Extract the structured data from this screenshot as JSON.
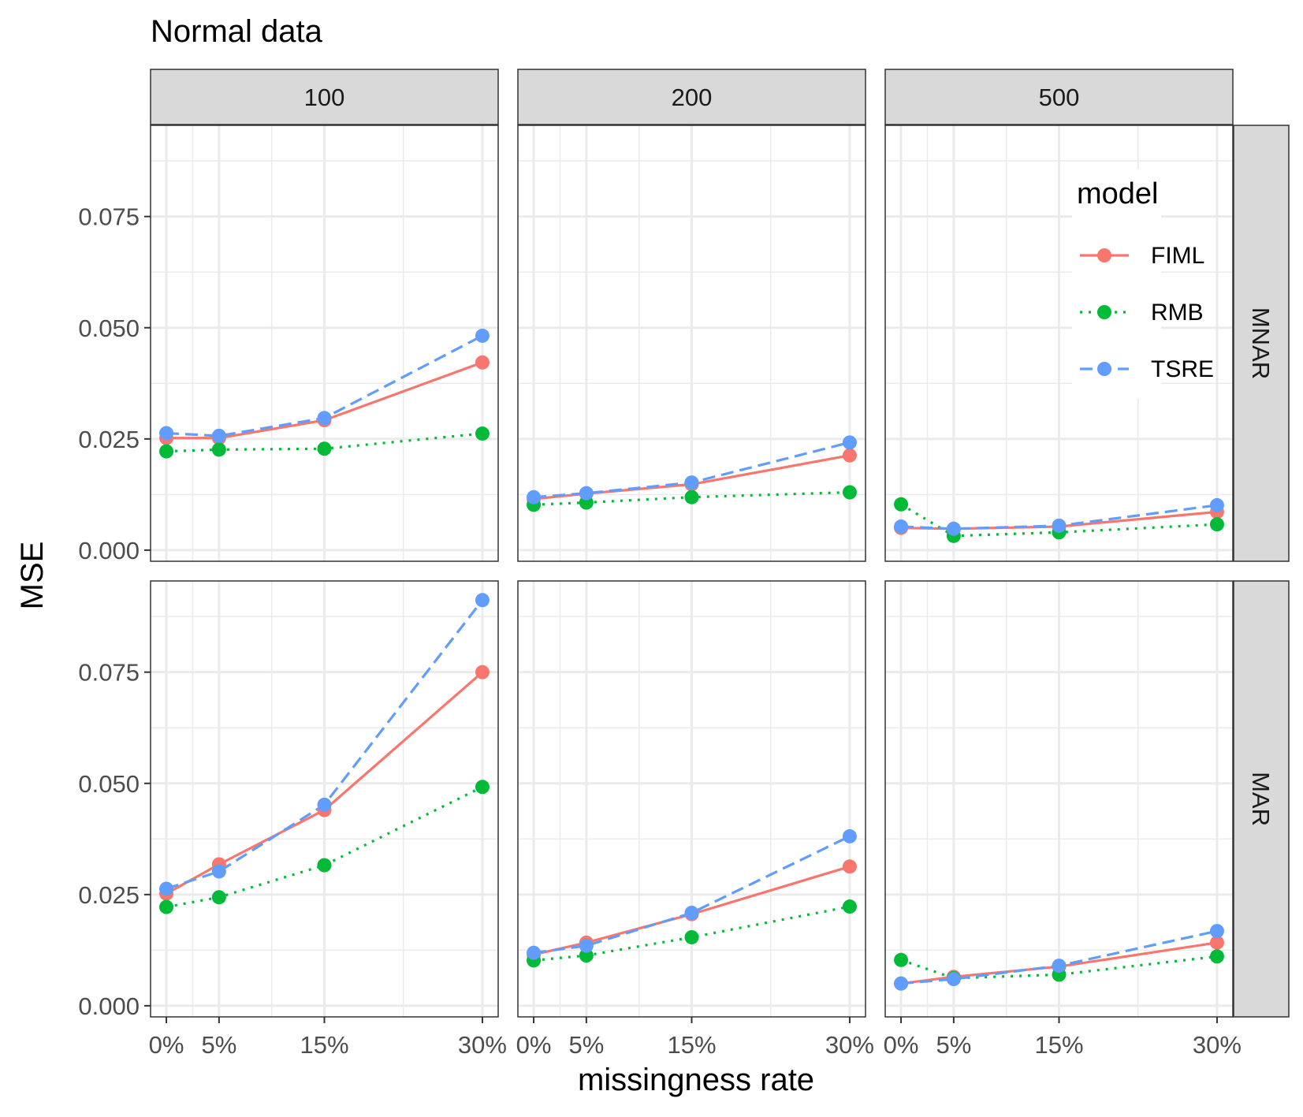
{
  "chart_data": {
    "type": "line",
    "title": "Normal data",
    "xlabel": "missingness rate",
    "ylabel": "MSE",
    "x": [
      0,
      5,
      15,
      30
    ],
    "x_tick_labels": [
      "0%",
      "5%",
      "15%",
      "30%"
    ],
    "xlim": [
      -1.5,
      31.5
    ],
    "ylim": [
      -0.0025,
      0.0955
    ],
    "y_ticks": [
      0.0,
      0.025,
      0.05,
      0.075
    ],
    "y_tick_labels": [
      "0.000",
      "0.025",
      "0.050",
      "0.075"
    ],
    "grid": true,
    "facet_columns": [
      "100",
      "200",
      "500"
    ],
    "facet_rows": [
      "MNAR",
      "MAR"
    ],
    "legend": {
      "title": "model",
      "position": "top-right",
      "entries": [
        {
          "name": "FIML",
          "color": "#F8766D",
          "linetype": "solid"
        },
        {
          "name": "RMB",
          "color": "#00BA38",
          "linetype": "dotted"
        },
        {
          "name": "TSRE",
          "color": "#619CFF",
          "linetype": "dashed"
        }
      ]
    },
    "panels": [
      {
        "row": "MNAR",
        "col": "100",
        "series": [
          {
            "name": "FIML",
            "values": [
              0.0252,
              0.0252,
              0.0292,
              0.0422
            ]
          },
          {
            "name": "RMB",
            "values": [
              0.0222,
              0.0226,
              0.0228,
              0.0262
            ]
          },
          {
            "name": "TSRE",
            "values": [
              0.0263,
              0.0257,
              0.0297,
              0.0482
            ]
          }
        ]
      },
      {
        "row": "MNAR",
        "col": "200",
        "series": [
          {
            "name": "FIML",
            "values": [
              0.0115,
              0.0127,
              0.0148,
              0.0213
            ]
          },
          {
            "name": "RMB",
            "values": [
              0.0102,
              0.0107,
              0.0119,
              0.013
            ]
          },
          {
            "name": "TSRE",
            "values": [
              0.0119,
              0.0128,
              0.0152,
              0.0242
            ]
          }
        ]
      },
      {
        "row": "MNAR",
        "col": "500",
        "series": [
          {
            "name": "FIML",
            "values": [
              0.005,
              0.0048,
              0.0053,
              0.0086
            ]
          },
          {
            "name": "RMB",
            "values": [
              0.0103,
              0.0032,
              0.004,
              0.0058
            ]
          },
          {
            "name": "TSRE",
            "values": [
              0.0053,
              0.0048,
              0.0055,
              0.0101
            ]
          }
        ]
      },
      {
        "row": "MAR",
        "col": "100",
        "series": [
          {
            "name": "FIML",
            "values": [
              0.0252,
              0.0318,
              0.044,
              0.075
            ]
          },
          {
            "name": "RMB",
            "values": [
              0.0222,
              0.0244,
              0.0316,
              0.0492
            ]
          },
          {
            "name": "TSRE",
            "values": [
              0.0263,
              0.0302,
              0.0452,
              0.0912
            ]
          }
        ]
      },
      {
        "row": "MAR",
        "col": "200",
        "series": [
          {
            "name": "FIML",
            "values": [
              0.0115,
              0.0142,
              0.0206,
              0.0313
            ]
          },
          {
            "name": "RMB",
            "values": [
              0.0102,
              0.0113,
              0.0154,
              0.0223
            ]
          },
          {
            "name": "TSRE",
            "values": [
              0.0119,
              0.0135,
              0.0209,
              0.0381
            ]
          }
        ]
      },
      {
        "row": "MAR",
        "col": "500",
        "series": [
          {
            "name": "FIML",
            "values": [
              0.005,
              0.0065,
              0.0088,
              0.0142
            ]
          },
          {
            "name": "RMB",
            "values": [
              0.0103,
              0.0062,
              0.007,
              0.0111
            ]
          },
          {
            "name": "TSRE",
            "values": [
              0.005,
              0.006,
              0.009,
              0.0168
            ]
          }
        ]
      }
    ]
  }
}
